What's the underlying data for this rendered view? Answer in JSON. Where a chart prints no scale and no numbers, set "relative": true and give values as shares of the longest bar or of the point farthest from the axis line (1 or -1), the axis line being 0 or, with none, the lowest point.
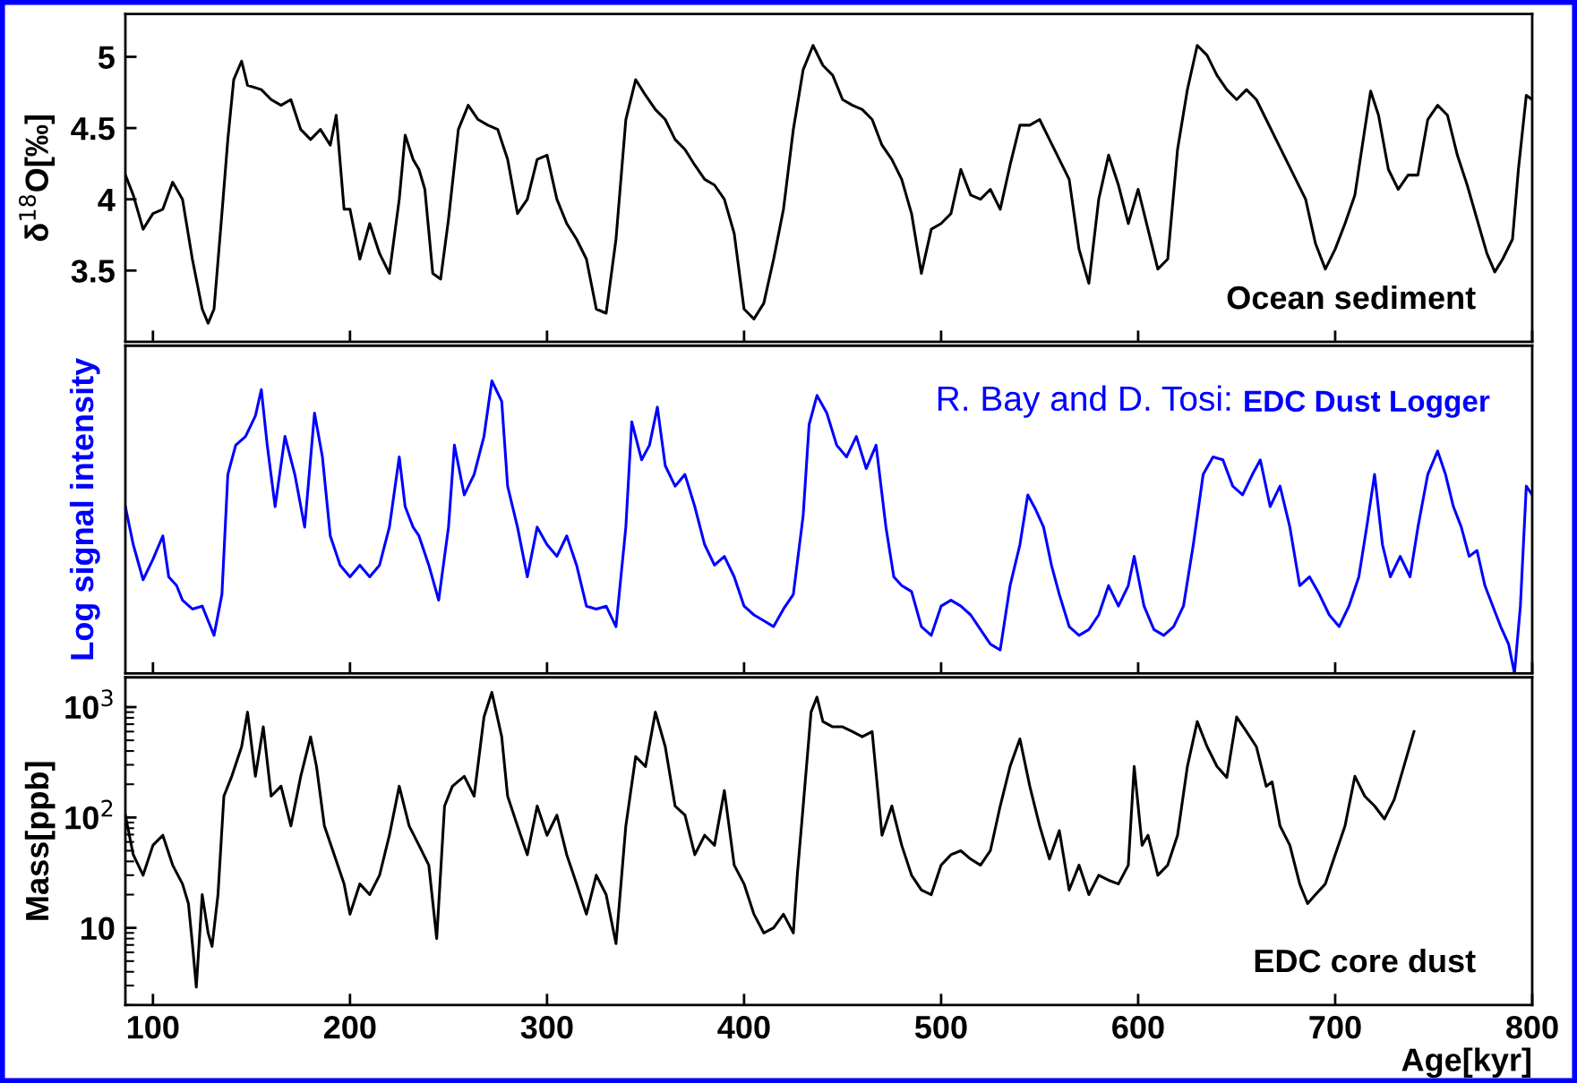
{
  "chart_data": [
    {
      "type": "line",
      "ylabel": "δ$^{18}$O[‰]",
      "xlim": [
        86,
        800
      ],
      "xticks": [
        100,
        200,
        300,
        400,
        500,
        600,
        700,
        800
      ],
      "ylim": [
        3.0,
        5.3
      ],
      "yticks": [
        3.5,
        4,
        4.5,
        5
      ],
      "tick_labels": "y",
      "annotations": [
        "Ocean sediment"
      ],
      "x": [
        86,
        90,
        95,
        100,
        105,
        110,
        115,
        120,
        125,
        128,
        131,
        135,
        138,
        141,
        145,
        148,
        155,
        160,
        165,
        170,
        175,
        180,
        185,
        190,
        193,
        197,
        200,
        205,
        210,
        215,
        220,
        225,
        228,
        232,
        235,
        238,
        242,
        246,
        250,
        255,
        260,
        265,
        270,
        275,
        280,
        285,
        290,
        295,
        300,
        305,
        310,
        315,
        320,
        325,
        330,
        335,
        340,
        345,
        350,
        355,
        360,
        365,
        370,
        375,
        380,
        385,
        390,
        395,
        400,
        405,
        410,
        415,
        420,
        425,
        430,
        435,
        440,
        445,
        450,
        455,
        460,
        465,
        470,
        475,
        480,
        485,
        490,
        495,
        500,
        505,
        510,
        515,
        520,
        525,
        530,
        535,
        540,
        545,
        550,
        555,
        560,
        565,
        570,
        575,
        580,
        585,
        590,
        595,
        600,
        605,
        610,
        615,
        620,
        625,
        630,
        635,
        640,
        645,
        650,
        655,
        660,
        665,
        670,
        675,
        680,
        685,
        690,
        695,
        700,
        705,
        710,
        715,
        718,
        722,
        727,
        732,
        737,
        742,
        747,
        752,
        757,
        762,
        767,
        772,
        777,
        781,
        785,
        790,
        793,
        797,
        800
      ],
      "series": [
        {
          "color": "#000000",
          "values": [
            4.17,
            4.03,
            3.79,
            3.9,
            3.93,
            4.12,
            4.0,
            3.58,
            3.23,
            3.13,
            3.23,
            3.9,
            4.42,
            4.84,
            4.97,
            4.8,
            4.77,
            4.7,
            4.66,
            4.7,
            4.49,
            4.42,
            4.49,
            4.38,
            4.59,
            3.93,
            3.93,
            3.58,
            3.83,
            3.62,
            3.48,
            4.0,
            4.45,
            4.28,
            4.21,
            4.07,
            3.48,
            3.44,
            3.86,
            4.49,
            4.66,
            4.56,
            4.52,
            4.49,
            4.28,
            3.9,
            4.0,
            4.28,
            4.31,
            4.0,
            3.83,
            3.72,
            3.58,
            3.23,
            3.2,
            3.72,
            4.56,
            4.84,
            4.73,
            4.63,
            4.56,
            4.42,
            4.35,
            4.24,
            4.14,
            4.1,
            4.0,
            3.76,
            3.23,
            3.16,
            3.27,
            3.58,
            3.93,
            4.49,
            4.91,
            5.08,
            4.94,
            4.87,
            4.7,
            4.66,
            4.63,
            4.56,
            4.38,
            4.28,
            4.14,
            3.9,
            3.48,
            3.79,
            3.83,
            3.9,
            4.21,
            4.03,
            4.0,
            4.07,
            3.93,
            4.24,
            4.52,
            4.52,
            4.56,
            4.42,
            4.28,
            4.14,
            3.65,
            3.41,
            4.0,
            4.31,
            4.1,
            3.83,
            4.07,
            3.79,
            3.51,
            3.58,
            4.35,
            4.77,
            5.08,
            5.01,
            4.87,
            4.77,
            4.7,
            4.77,
            4.7,
            4.56,
            4.42,
            4.28,
            4.14,
            4.0,
            3.69,
            3.51,
            3.65,
            3.83,
            4.03,
            4.49,
            4.76,
            4.59,
            4.21,
            4.07,
            4.17,
            4.17,
            4.56,
            4.66,
            4.59,
            4.31,
            4.1,
            3.86,
            3.62,
            3.49,
            3.58,
            3.72,
            4.21,
            4.73,
            4.7
          ]
        }
      ]
    },
    {
      "type": "line",
      "ylabel": "Log signal intensity",
      "relative": true,
      "xlim": [
        86,
        800
      ],
      "xticks": [
        100,
        200,
        300,
        400,
        500,
        600,
        700,
        800
      ],
      "tick_labels": false,
      "annotations": [
        "R. Bay and D. Tosi:",
        "EDC Dust Logger"
      ],
      "x": [
        86,
        90,
        95,
        100,
        105,
        108,
        112,
        115,
        120,
        125,
        128,
        131,
        135,
        138,
        142,
        147,
        152,
        155,
        158,
        162,
        167,
        172,
        177,
        182,
        186,
        190,
        195,
        200,
        205,
        210,
        215,
        220,
        225,
        228,
        232,
        235,
        240,
        245,
        250,
        253,
        258,
        263,
        268,
        272,
        277,
        280,
        285,
        290,
        295,
        300,
        305,
        310,
        315,
        320,
        325,
        330,
        335,
        340,
        343,
        348,
        352,
        356,
        360,
        365,
        370,
        375,
        380,
        385,
        390,
        395,
        400,
        405,
        410,
        415,
        420,
        425,
        430,
        433,
        437,
        442,
        447,
        452,
        457,
        462,
        467,
        472,
        476,
        480,
        485,
        490,
        495,
        500,
        505,
        510,
        515,
        520,
        525,
        530,
        535,
        540,
        544,
        548,
        552,
        556,
        560,
        565,
        570,
        575,
        580,
        585,
        590,
        595,
        598,
        603,
        608,
        613,
        618,
        623,
        628,
        633,
        638,
        643,
        648,
        653,
        658,
        662,
        667,
        672,
        677,
        682,
        687,
        692,
        697,
        702,
        707,
        712,
        716,
        720,
        724,
        728,
        733,
        738,
        742,
        747,
        752,
        756,
        760,
        764,
        768,
        772,
        776,
        780,
        784,
        788,
        791,
        794,
        797,
        800
      ],
      "series": [
        {
          "color": "#0000ff",
          "values": [
            0.57,
            0.44,
            0.32,
            0.39,
            0.47,
            0.33,
            0.3,
            0.25,
            0.22,
            0.23,
            0.18,
            0.13,
            0.27,
            0.68,
            0.78,
            0.81,
            0.88,
            0.97,
            0.78,
            0.57,
            0.81,
            0.68,
            0.5,
            0.89,
            0.74,
            0.47,
            0.37,
            0.33,
            0.37,
            0.33,
            0.37,
            0.5,
            0.74,
            0.57,
            0.5,
            0.47,
            0.37,
            0.25,
            0.5,
            0.78,
            0.61,
            0.68,
            0.81,
            1.0,
            0.93,
            0.64,
            0.5,
            0.33,
            0.5,
            0.44,
            0.4,
            0.47,
            0.37,
            0.23,
            0.22,
            0.23,
            0.16,
            0.5,
            0.86,
            0.73,
            0.78,
            0.91,
            0.71,
            0.64,
            0.68,
            0.57,
            0.44,
            0.37,
            0.4,
            0.33,
            0.23,
            0.2,
            0.18,
            0.16,
            0.22,
            0.27,
            0.54,
            0.85,
            0.95,
            0.89,
            0.78,
            0.74,
            0.81,
            0.7,
            0.78,
            0.5,
            0.33,
            0.3,
            0.28,
            0.16,
            0.13,
            0.23,
            0.25,
            0.23,
            0.2,
            0.15,
            0.1,
            0.08,
            0.3,
            0.44,
            0.61,
            0.56,
            0.5,
            0.37,
            0.27,
            0.16,
            0.13,
            0.15,
            0.2,
            0.3,
            0.23,
            0.3,
            0.4,
            0.23,
            0.15,
            0.13,
            0.16,
            0.23,
            0.44,
            0.68,
            0.74,
            0.73,
            0.64,
            0.61,
            0.68,
            0.73,
            0.57,
            0.64,
            0.5,
            0.3,
            0.33,
            0.27,
            0.2,
            0.16,
            0.23,
            0.33,
            0.5,
            0.68,
            0.44,
            0.33,
            0.4,
            0.33,
            0.5,
            0.68,
            0.76,
            0.68,
            0.57,
            0.5,
            0.4,
            0.42,
            0.3,
            0.23,
            0.16,
            0.1,
            0.0,
            0.23,
            0.64,
            0.61
          ]
        }
      ]
    },
    {
      "type": "line",
      "ylabel": "Mass[ppb]",
      "xlabel": "Age[kyr]",
      "log": "y",
      "xlim": [
        86,
        800
      ],
      "xticks": [
        100,
        200,
        300,
        400,
        500,
        600,
        700,
        800
      ],
      "ylim": [
        2,
        1860
      ],
      "yticks": [
        10,
        {
          "value": 100,
          "label": "10$^{2}$"
        },
        {
          "value": 1000,
          "label": "10$^{3}$"
        }
      ],
      "annotations": [
        "EDC core dust"
      ],
      "x": [
        86,
        90,
        95,
        100,
        105,
        110,
        115,
        118,
        120,
        122,
        125,
        128,
        130,
        133,
        136,
        140,
        145,
        148,
        152,
        156,
        160,
        165,
        170,
        175,
        180,
        183,
        187,
        192,
        197,
        200,
        205,
        210,
        215,
        220,
        225,
        230,
        235,
        240,
        244,
        248,
        252,
        258,
        263,
        268,
        272,
        277,
        280,
        285,
        290,
        295,
        300,
        305,
        310,
        315,
        320,
        325,
        330,
        335,
        340,
        345,
        350,
        355,
        360,
        365,
        370,
        375,
        380,
        385,
        390,
        395,
        400,
        405,
        410,
        415,
        420,
        425,
        427,
        430,
        434,
        437,
        440,
        445,
        450,
        455,
        460,
        465,
        470,
        475,
        480,
        485,
        490,
        495,
        500,
        505,
        510,
        515,
        520,
        525,
        530,
        535,
        540,
        545,
        550,
        555,
        560,
        565,
        570,
        575,
        580,
        585,
        590,
        595,
        598,
        602,
        605,
        610,
        615,
        620,
        625,
        630,
        635,
        640,
        645,
        650,
        655,
        660,
        665,
        668,
        672,
        677,
        682,
        686,
        690,
        695,
        700,
        705,
        710,
        715,
        720,
        725,
        730,
        740
      ],
      "series": [
        {
          "color": "#000000",
          "values": [
            105,
            46,
            30,
            56,
            69,
            37,
            25,
            16.6,
            7.2,
            2.9,
            20,
            9,
            6.8,
            20,
            156,
            236,
            438,
            900,
            236,
            662,
            156,
            192,
            84,
            236,
            538,
            290,
            84,
            46,
            25,
            13.3,
            25,
            20,
            30,
            69,
            192,
            84,
            56,
            37,
            8,
            127,
            192,
            236,
            156,
            813,
            1360,
            538,
            156,
            84,
            46,
            127,
            69,
            105,
            46,
            25,
            13.3,
            30,
            20,
            7.2,
            84,
            356,
            290,
            900,
            438,
            127,
            105,
            46,
            69,
            56,
            175,
            37,
            25,
            13.3,
            9,
            10,
            13.3,
            9,
            30,
            127,
            900,
            1230,
            740,
            662,
            662,
            600,
            538,
            600,
            69,
            127,
            56,
            30,
            22,
            20,
            37,
            46,
            50,
            42,
            37,
            50,
            127,
            290,
            515,
            192,
            84,
            42,
            76,
            22,
            37,
            20,
            30,
            27,
            25,
            37,
            290,
            56,
            69,
            30,
            37,
            69,
            290,
            740,
            438,
            290,
            230,
            813,
            600,
            438,
            192,
            210,
            84,
            56,
            25,
            16.6,
            20,
            25,
            46,
            84,
            236,
            156,
            127,
            97,
            146,
            600
          ]
        }
      ]
    }
  ]
}
